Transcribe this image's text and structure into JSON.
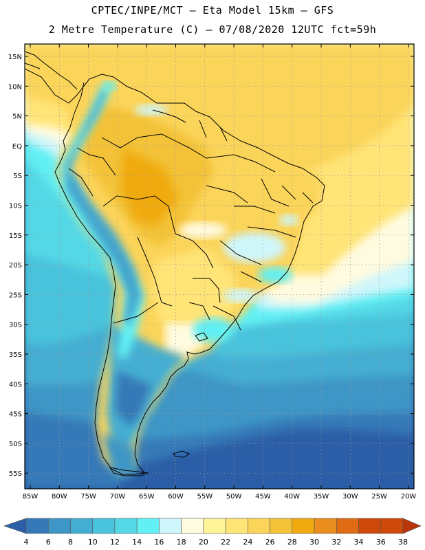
{
  "header": {
    "line1": "CPTEC/INPE/MCT –  Eta Model 15km – GFS",
    "line2": "2 Metre Temperature (C) – 07/08/2020 12UTC fct=59h"
  },
  "map": {
    "lat_labels": [
      "15N",
      "10N",
      "5N",
      "EQ",
      "5S",
      "10S",
      "15S",
      "20S",
      "25S",
      "30S",
      "35S",
      "40S",
      "45S",
      "50S",
      "55S"
    ],
    "lon_labels": [
      "85W",
      "80W",
      "75W",
      "70W",
      "65W",
      "60W",
      "55W",
      "50W",
      "45W",
      "40W",
      "35W",
      "30W",
      "25W",
      "20W"
    ]
  },
  "colorbar": {
    "labels": [
      "4",
      "6",
      "8",
      "10",
      "12",
      "14",
      "16",
      "18",
      "20",
      "22",
      "24",
      "26",
      "28",
      "30",
      "32",
      "34",
      "36",
      "38"
    ],
    "colors": [
      "#2b5ea6",
      "#3679b8",
      "#3e96c6",
      "#44aed2",
      "#4ac3dc",
      "#54d8e6",
      "#62f0f4",
      "#cff6fb",
      "#fffbe0",
      "#fff39a",
      "#ffe477",
      "#fbd45a",
      "#f3c238",
      "#f0aa10",
      "#e98d1f",
      "#df6b14",
      "#cd4a0a",
      "#b8350a"
    ]
  }
}
